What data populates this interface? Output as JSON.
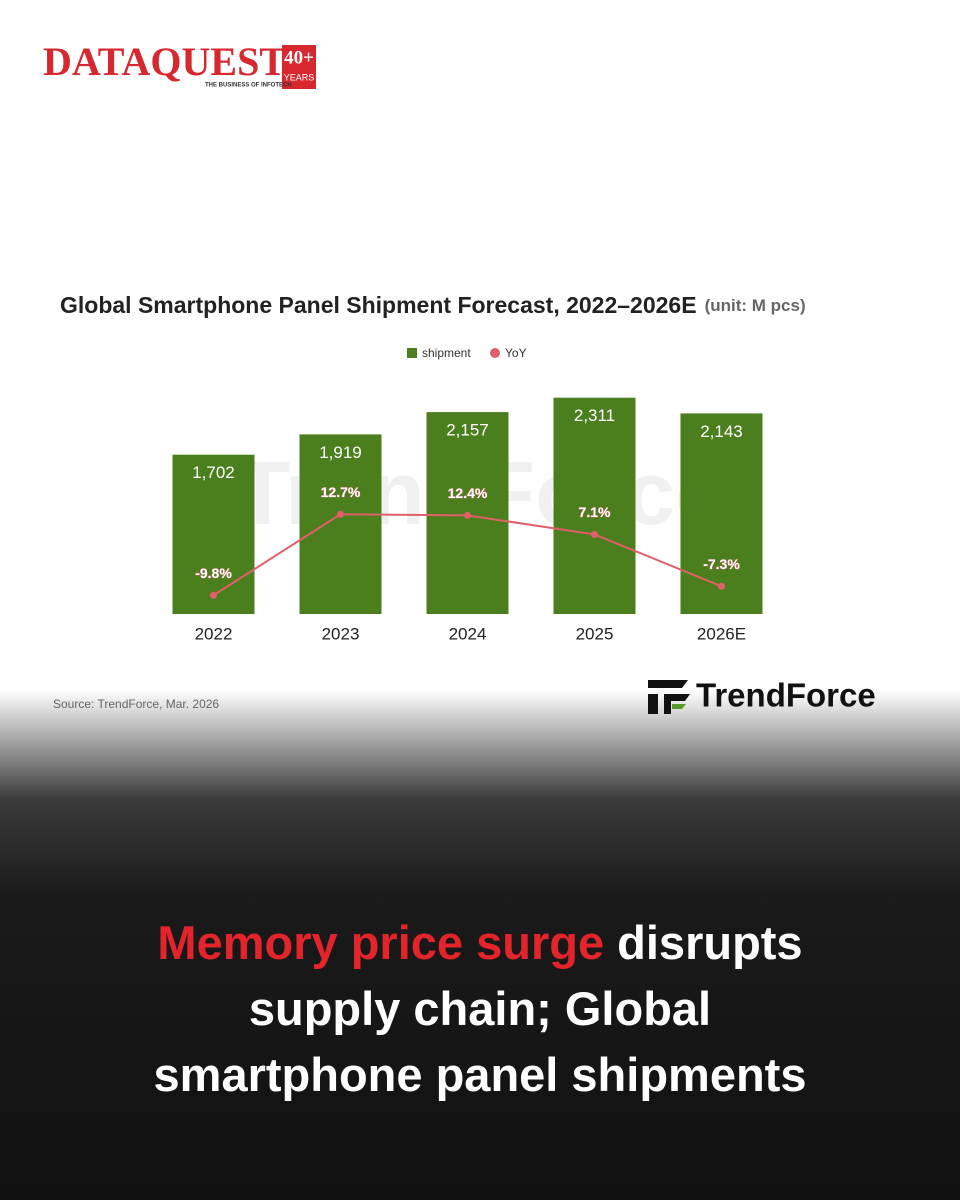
{
  "brand": {
    "name": "DATAQUEST",
    "badge": "40+",
    "badge_sub": "YEARS",
    "tagline": "THE BUSINESS OF INFOTECH",
    "source_logo": "TrendForce"
  },
  "chart_data": {
    "type": "bar",
    "title": "Global Smartphone Panel Shipment Forecast, 2022–2026E",
    "unit": "(unit: M pcs)",
    "categories": [
      "2022",
      "2023",
      "2024",
      "2025",
      "2026E"
    ],
    "series": [
      {
        "name": "shipment",
        "color": "#4b7f1d",
        "values": [
          1702,
          1919,
          2157,
          2311,
          2143
        ],
        "value_labels": [
          "1,702",
          "1,919",
          "2,157",
          "2,311",
          "2,143"
        ]
      },
      {
        "name": "YoY",
        "type": "line",
        "axis": "y2",
        "color": "#e0606a",
        "values": [
          -9.8,
          12.7,
          12.4,
          7.1,
          -7.3
        ],
        "value_labels": [
          "-9.8%",
          "12.7%",
          "12.4%",
          "7.1%",
          "-7.3%"
        ]
      }
    ],
    "ylim": [
      0,
      2500
    ],
    "y2lim": [
      -15,
      50
    ],
    "legend": "top",
    "source": "Source: TrendForce, Mar. 2026"
  },
  "headline": {
    "highlight": "Memory price surge",
    "text": "disrupts supply chain; Global smartphone panel shipments"
  }
}
